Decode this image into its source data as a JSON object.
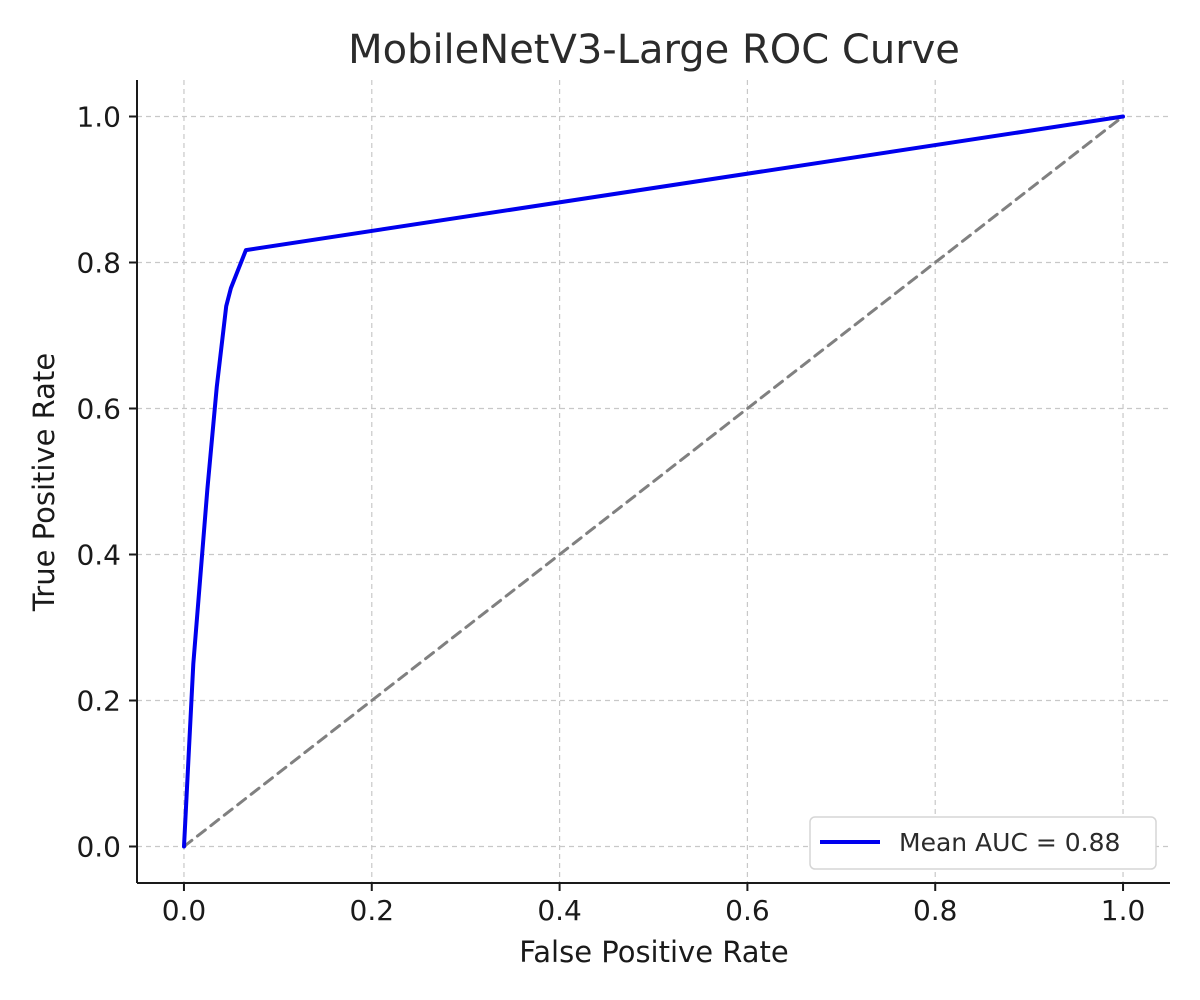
{
  "chart_data": {
    "type": "line",
    "title": "MobileNetV3-Large ROC Curve",
    "xlabel": "False Positive Rate",
    "ylabel": "True Positive Rate",
    "xlim": [
      -0.05,
      1.05
    ],
    "ylim": [
      -0.05,
      1.05
    ],
    "xticks": [
      "0.0",
      "0.2",
      "0.4",
      "0.6",
      "0.8",
      "1.0"
    ],
    "yticks": [
      "0.0",
      "0.2",
      "0.4",
      "0.6",
      "0.8",
      "1.0"
    ],
    "grid": true,
    "legend_position": "lower-right",
    "series": [
      {
        "name": "Mean AUC = 0.88",
        "color": "#0000ee",
        "style": "solid",
        "x": [
          0.0,
          0.01,
          0.025,
          0.035,
          0.045,
          0.05,
          0.066,
          1.0
        ],
        "y": [
          0.0,
          0.25,
          0.49,
          0.63,
          0.74,
          0.765,
          0.817,
          1.0
        ]
      },
      {
        "color": "#808080",
        "style": "dashed",
        "x": [
          0.0,
          1.0
        ],
        "y": [
          0.0,
          1.0
        ]
      }
    ]
  }
}
